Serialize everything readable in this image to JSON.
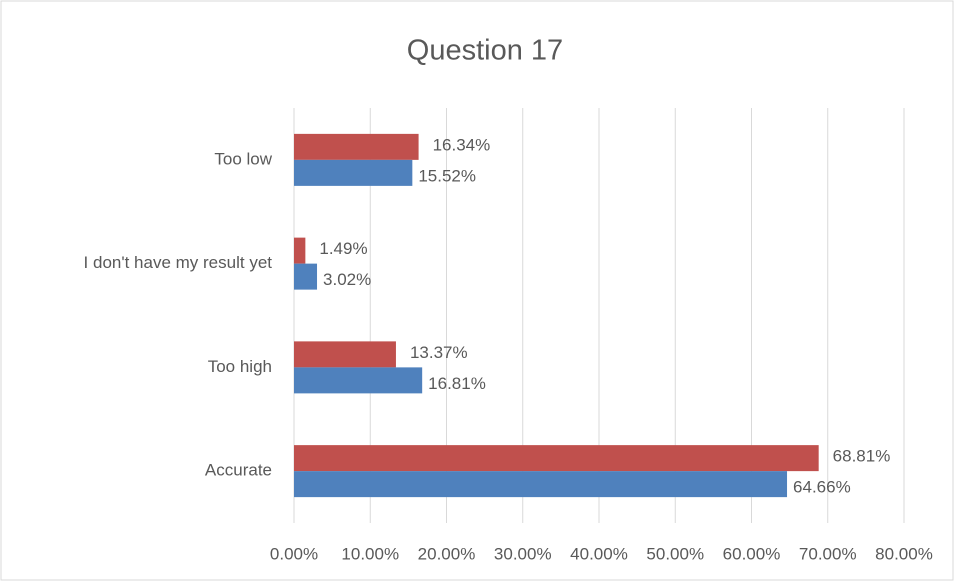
{
  "chart_data": {
    "type": "hbar",
    "title": "Question 17",
    "categories": [
      "Too low",
      "I don't have my result yet",
      "Too high",
      "Accurate"
    ],
    "series": [
      {
        "color": "#c0504d",
        "values": [
          16.34,
          1.49,
          13.37,
          68.81
        ],
        "value_labels": [
          "16.34%",
          "1.49%",
          "13.37%",
          "68.81%"
        ]
      },
      {
        "color": "#4f81bd",
        "values": [
          15.52,
          3.02,
          16.81,
          64.66
        ],
        "value_labels": [
          "15.52%",
          "3.02%",
          "16.81%",
          "64.66%"
        ]
      }
    ],
    "xlim": [
      0,
      80
    ],
    "xticks": [
      {
        "value": 0,
        "label": "0.00%"
      },
      {
        "value": 10,
        "label": "10.00%"
      },
      {
        "value": 20,
        "label": "20.00%"
      },
      {
        "value": 30,
        "label": "30.00%"
      },
      {
        "value": 40,
        "label": "40.00%"
      },
      {
        "value": 50,
        "label": "50.00%"
      },
      {
        "value": 60,
        "label": "60.00%"
      },
      {
        "value": 70,
        "label": "70.00%"
      },
      {
        "value": 80,
        "label": "80.00%"
      }
    ],
    "grid": true
  }
}
